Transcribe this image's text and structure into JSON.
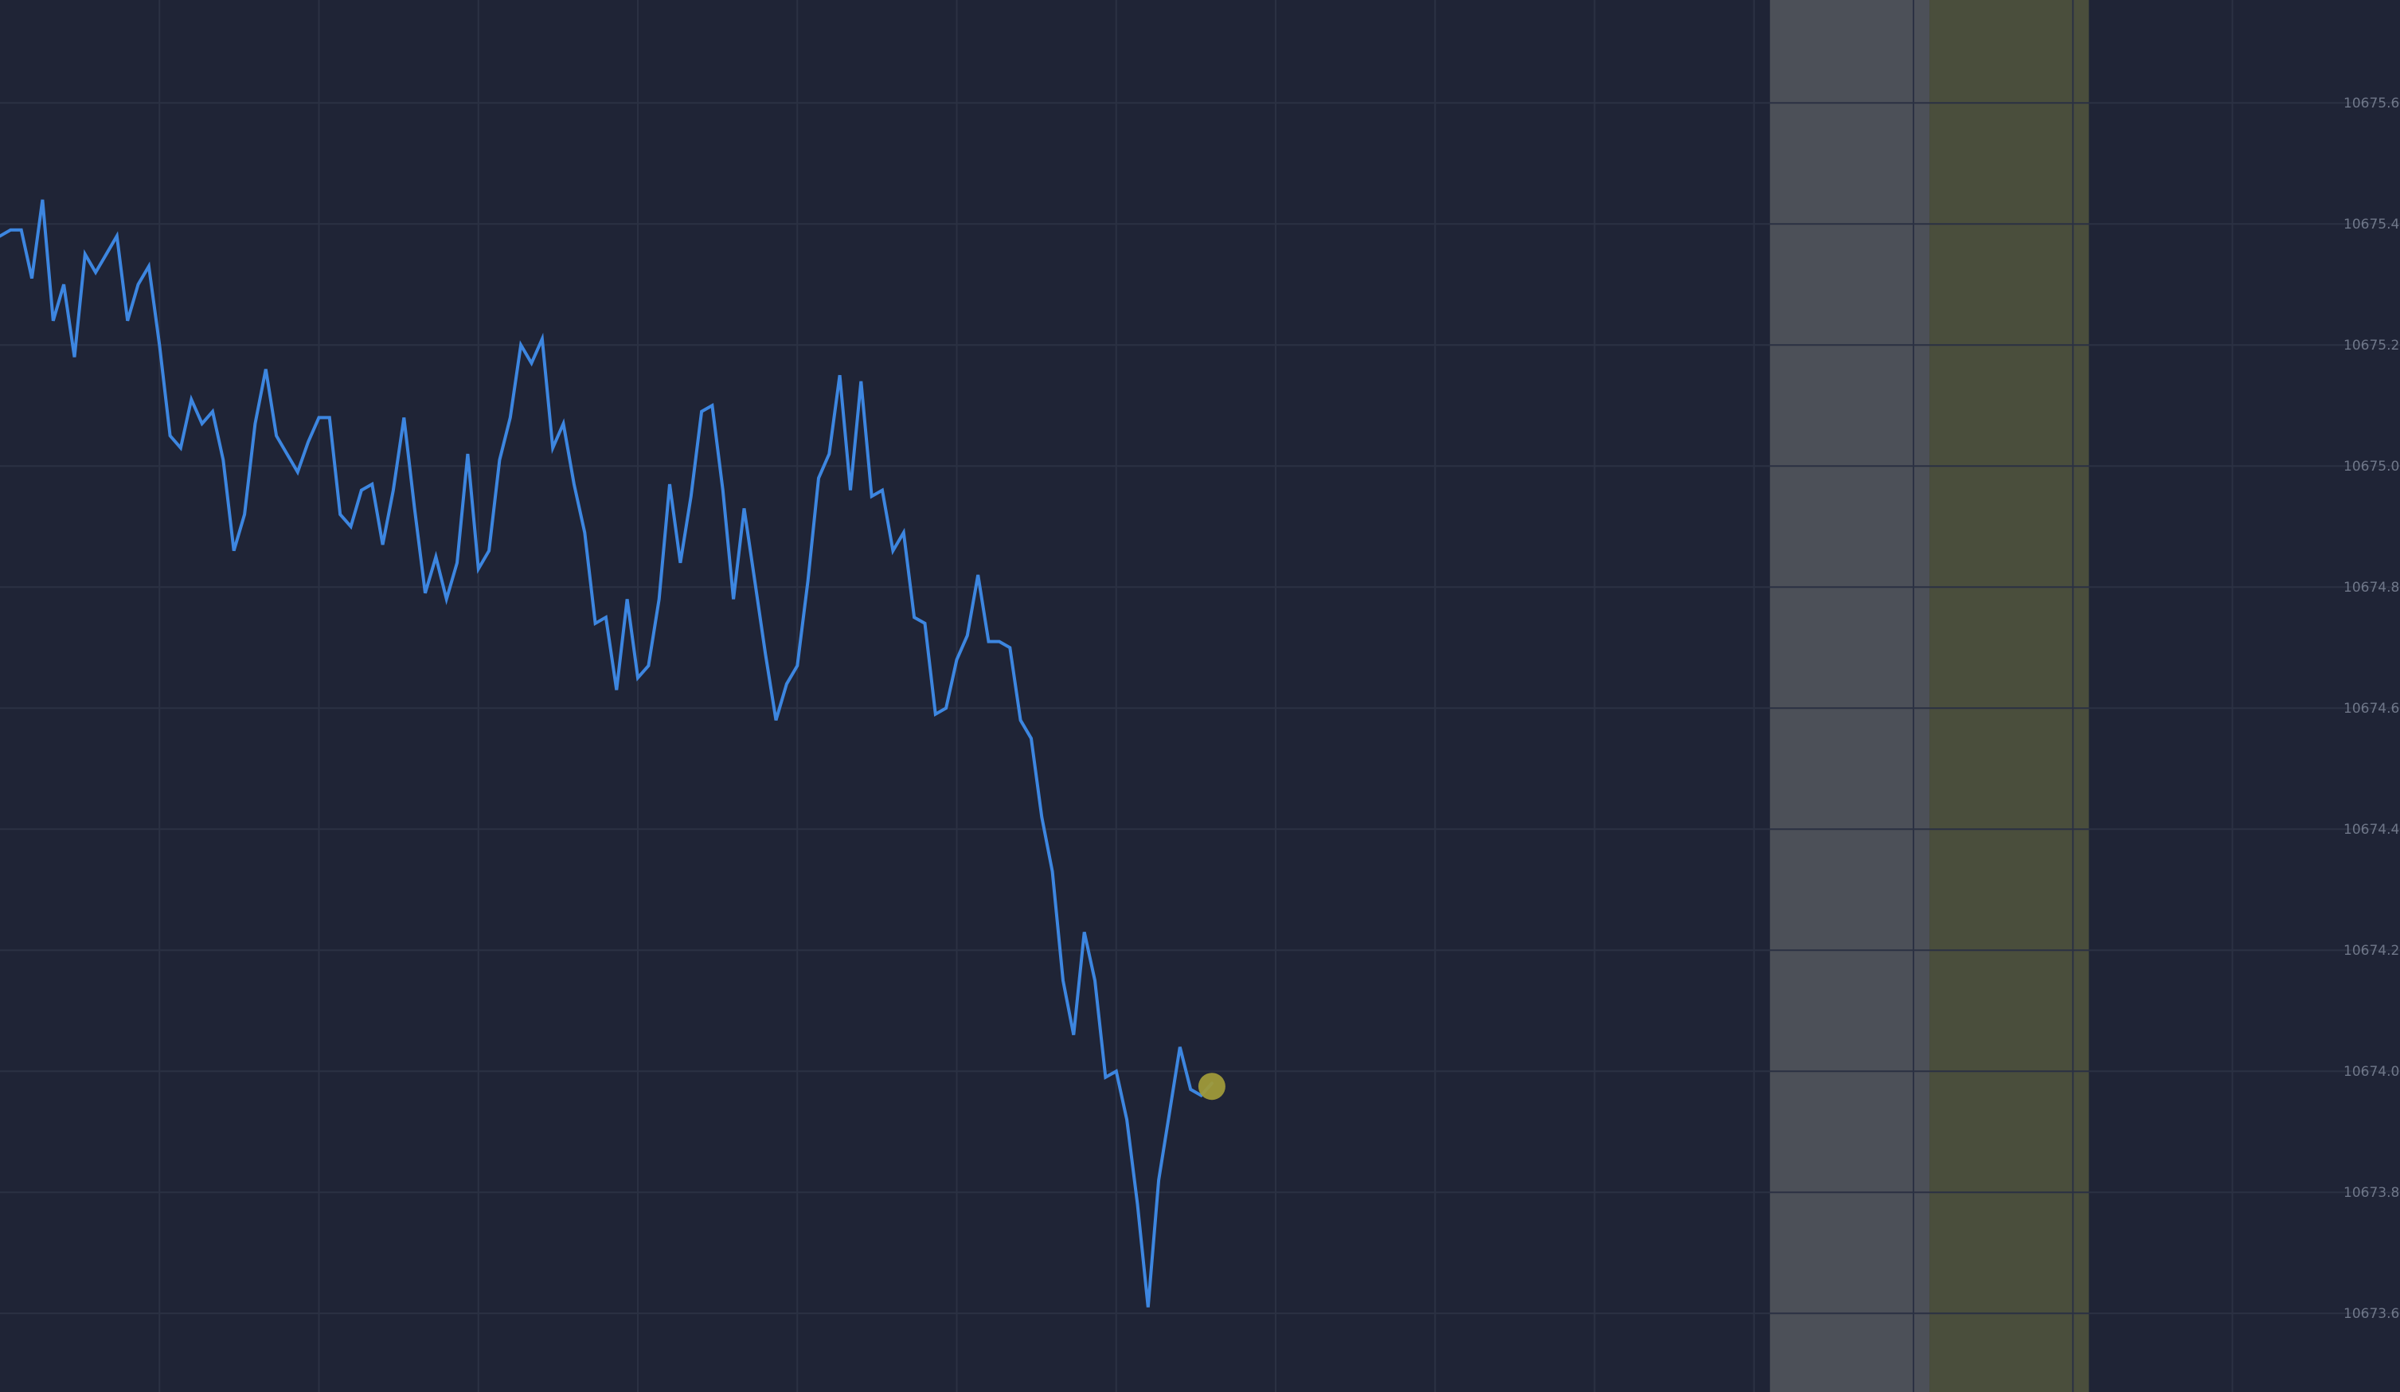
{
  "chart_data": {
    "type": "line",
    "title": "",
    "xlabel": "",
    "ylabel": "",
    "ylim": [
      10673.47,
      10675.77
    ],
    "grid": true,
    "y_ticks": [
      "10675.60",
      "10675.40",
      "10675.20",
      "10675.00",
      "10674.80",
      "10674.60",
      "10674.40",
      "10674.20",
      "10674.00",
      "10673.80",
      "10673.60"
    ],
    "y_tick_values": [
      10675.6,
      10675.4,
      10675.2,
      10675.0,
      10674.8,
      10674.6,
      10674.4,
      10674.2,
      10674.0,
      10673.8,
      10673.6
    ],
    "colors": {
      "background": "#1f2436",
      "grid": "#2b3143",
      "line": "#3d86e0",
      "marker": "#9f9a3a",
      "zone_gray": "#4c5058",
      "zone_olive": "#4a4e3c"
    },
    "shaded_zones": [
      {
        "name": "gray-zone",
        "x_start": 166.5,
        "x_end": 181.5
      },
      {
        "name": "olive-zone",
        "x_start": 181.5,
        "x_end": 196.5
      }
    ],
    "x_range": [
      0,
      223
    ],
    "series": [
      {
        "values": [
          10675.38,
          10675.39,
          10675.39,
          10675.31,
          10675.44,
          10675.24,
          10675.3,
          10675.18,
          10675.35,
          10675.32,
          10675.35,
          10675.38,
          10675.24,
          10675.3,
          10675.33,
          10675.2,
          10675.05,
          10675.03,
          10675.11,
          10675.07,
          10675.09,
          10675.01,
          10674.86,
          10674.92,
          10675.07,
          10675.16,
          10675.05,
          10675.02,
          10674.99,
          10675.04,
          10675.08,
          10675.08,
          10674.92,
          10674.9,
          10674.96,
          10674.97,
          10674.87,
          10674.96,
          10675.08,
          10674.93,
          10674.79,
          10674.85,
          10674.78,
          10674.84,
          10675.02,
          10674.83,
          10674.86,
          10675.01,
          10675.08,
          10675.2,
          10675.17,
          10675.21,
          10675.03,
          10675.07,
          10674.97,
          10674.89,
          10674.74,
          10674.75,
          10674.63,
          10674.78,
          10674.65,
          10674.67,
          10674.78,
          10674.97,
          10674.84,
          10674.95,
          10675.09,
          10675.1,
          10674.96,
          10674.78,
          10674.93,
          10674.81,
          10674.69,
          10674.58,
          10674.64,
          10674.67,
          10674.81,
          10674.98,
          10675.02,
          10675.15,
          10674.96,
          10675.14,
          10674.95,
          10674.96,
          10674.86,
          10674.89,
          10674.75,
          10674.74,
          10674.59,
          10674.6,
          10674.68,
          10674.72,
          10674.82,
          10674.71,
          10674.71,
          10674.7,
          10674.58,
          10674.55,
          10674.42,
          10674.33,
          10674.15,
          10674.06,
          10674.23,
          10674.15,
          10673.99,
          10674.0,
          10673.92,
          10673.78,
          10673.61,
          10673.82,
          10673.93,
          10674.04,
          10673.97,
          10673.96,
          10673.98
        ]
      }
    ],
    "marker": {
      "x": 114,
      "y": 10673.975
    }
  }
}
